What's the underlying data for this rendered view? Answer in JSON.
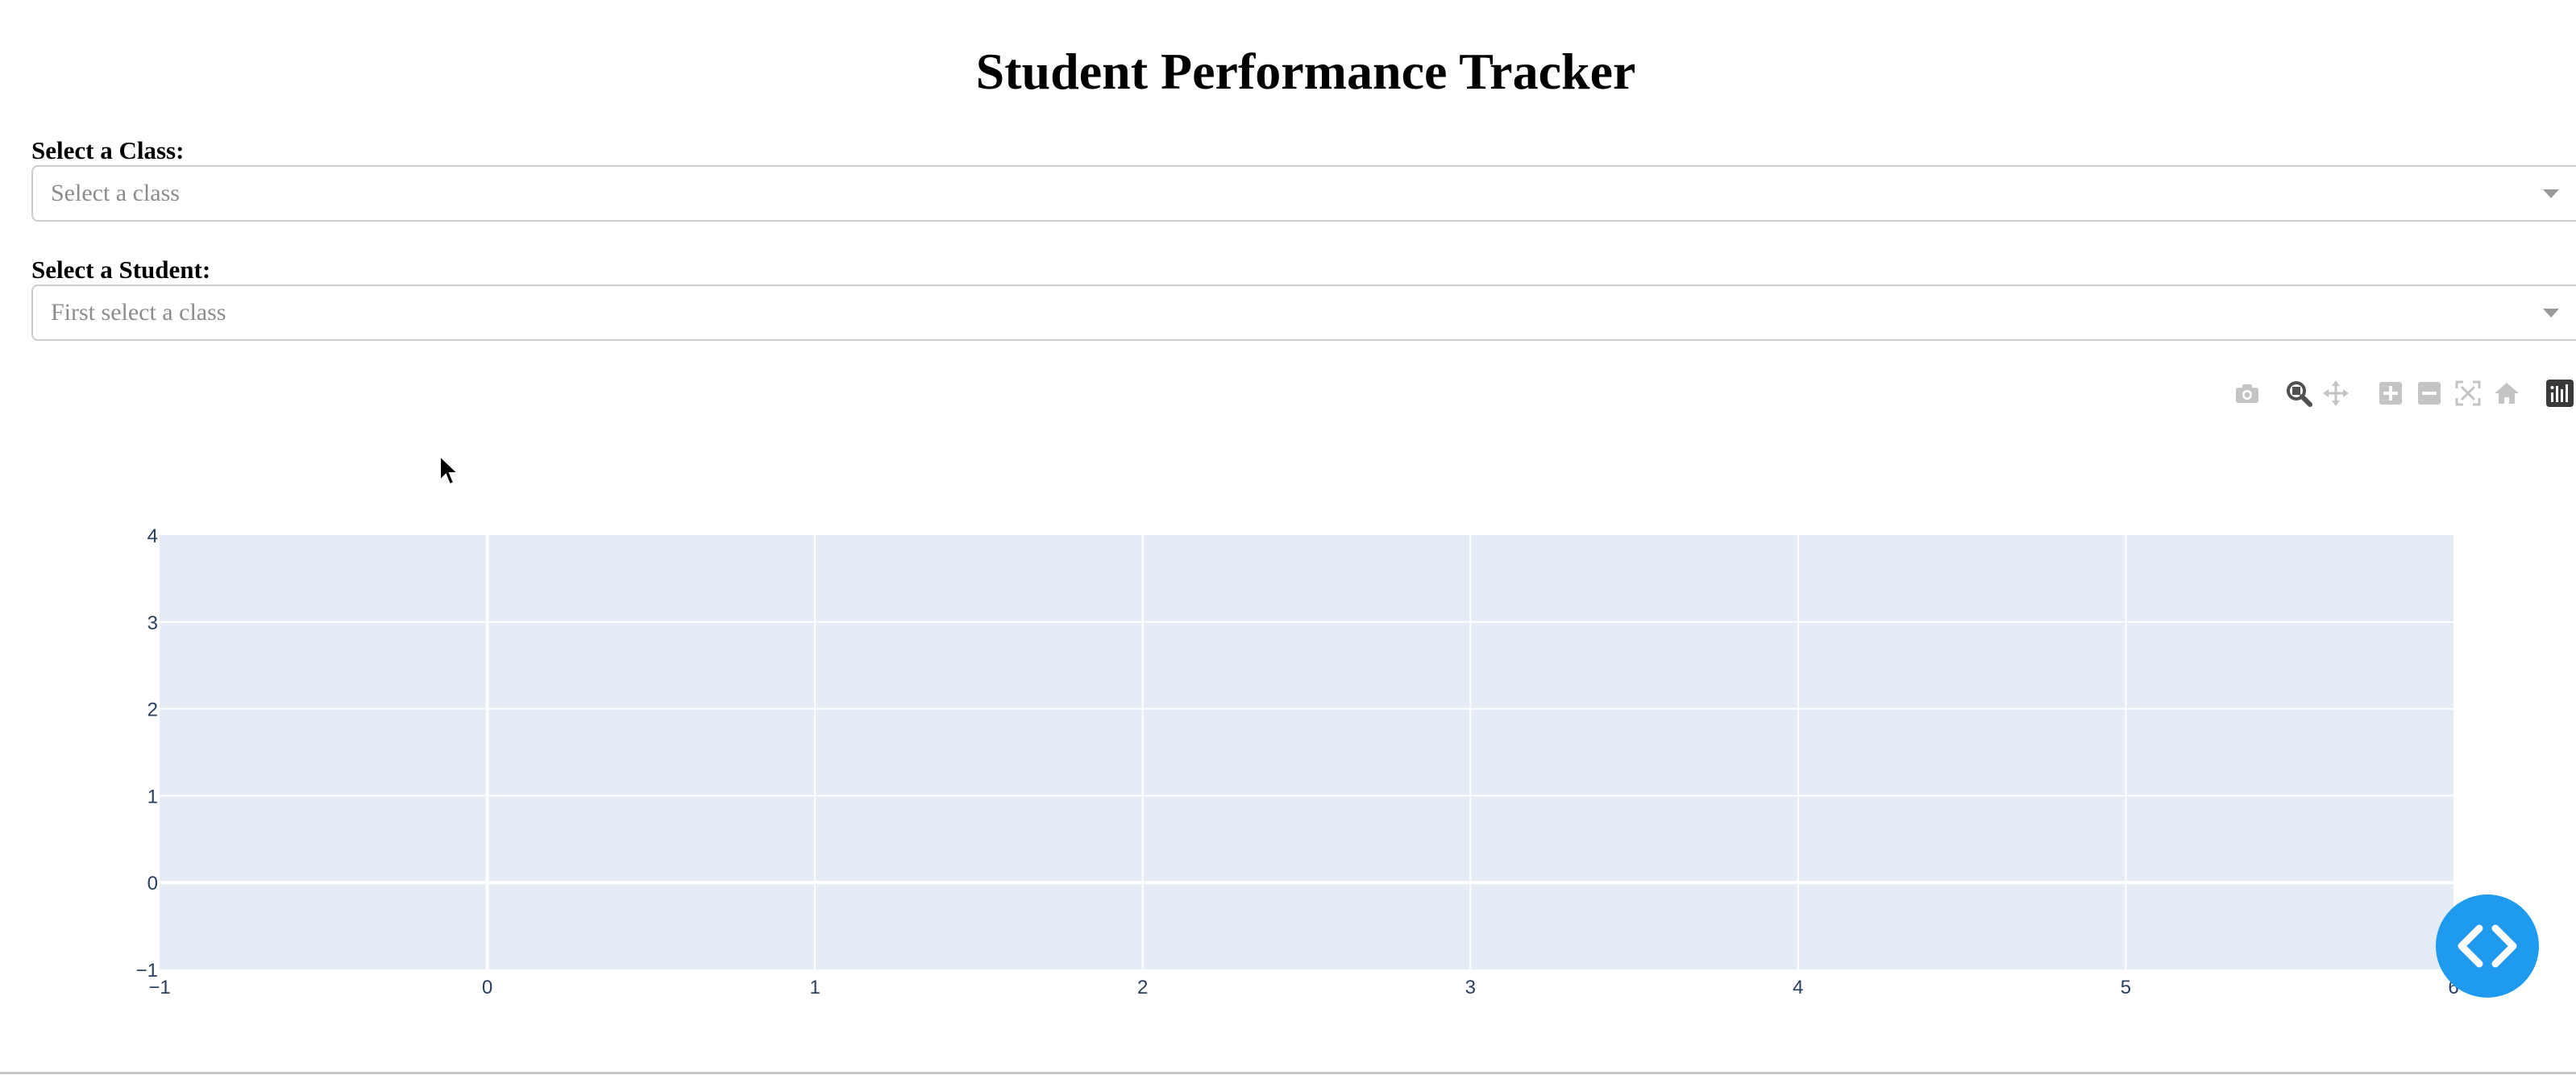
{
  "page": {
    "title": "Student Performance Tracker"
  },
  "class_select": {
    "label": "Select a Class:",
    "placeholder": "Select a class"
  },
  "student_select": {
    "label": "Select a Student:",
    "placeholder": "First select a class"
  },
  "modebar": {
    "buttons": [
      {
        "icon": "camera-icon",
        "title": "Download plot as a png"
      },
      {
        "icon": "zoom-icon",
        "title": "Zoom"
      },
      {
        "icon": "pan-icon",
        "title": "Pan"
      },
      {
        "icon": "zoom-in-icon",
        "title": "Zoom in"
      },
      {
        "icon": "zoom-out-icon",
        "title": "Zoom out"
      },
      {
        "icon": "autoscale-icon",
        "title": "Autoscale"
      },
      {
        "icon": "reset-axes-icon",
        "title": "Reset axes"
      },
      {
        "icon": "plotly-logo-icon",
        "title": "Produced with Plotly"
      }
    ]
  },
  "chart_data": {
    "type": "line",
    "title": "",
    "xlabel": "",
    "ylabel": "",
    "x": [],
    "series": [],
    "xlim": [
      -1,
      6
    ],
    "ylim": [
      -1,
      4
    ],
    "x_ticks": [
      -1,
      0,
      1,
      2,
      3,
      4,
      5,
      6
    ],
    "y_ticks": [
      -1,
      0,
      1,
      2,
      3,
      4
    ],
    "grid": true,
    "plot_background": "#e5ecf6",
    "gridline_color": "#ffffff",
    "tick_label_color": "#2a3f5f"
  },
  "debug_button": {
    "icon": "code-brackets-icon",
    "color": "#1e9aef"
  }
}
